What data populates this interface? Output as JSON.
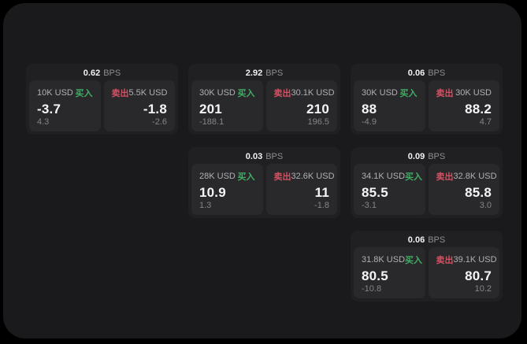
{
  "page": {
    "background": "#000000",
    "panel_background": "#1a1a1c"
  },
  "colors": {
    "buy_green": "#3fae63",
    "sell_red": "#d65063",
    "card_bg": "#202022",
    "subcard_bg": "#29292b",
    "primary_text": "#f5f5f7",
    "muted_text": "#8e8e93"
  },
  "labels": {
    "buy": "买入",
    "sell": "卖出",
    "bps": "BPS"
  },
  "cards": [
    {
      "bps": "0.62",
      "buy": {
        "size": "10K USD",
        "price": "-3.7",
        "delta": "4.3"
      },
      "sell": {
        "size": "5.5K USD",
        "price": "-1.8",
        "delta": "-2.6"
      }
    },
    {
      "bps": "2.92",
      "buy": {
        "size": "30K USD",
        "price": "201",
        "delta": "-188.1"
      },
      "sell": {
        "size": "30.1K USD",
        "price": "210",
        "delta": "196.5"
      }
    },
    {
      "bps": "0.06",
      "buy": {
        "size": "30K USD",
        "price": "88",
        "delta": "-4.9"
      },
      "sell": {
        "size": "30K USD",
        "price": "88.2",
        "delta": "4.7"
      }
    },
    {
      "bps": "0.03",
      "buy": {
        "size": "28K USD",
        "price": "10.9",
        "delta": "1.3"
      },
      "sell": {
        "size": "32.6K USD",
        "price": "11",
        "delta": "-1.8"
      }
    },
    {
      "bps": "0.09",
      "buy": {
        "size": "34.1K USD",
        "price": "85.5",
        "delta": "-3.1"
      },
      "sell": {
        "size": "32.8K USD",
        "price": "85.8",
        "delta": "3.0"
      }
    },
    {
      "bps": "0.06",
      "buy": {
        "size": "31.8K USD",
        "price": "80.5",
        "delta": "-10.8"
      },
      "sell": {
        "size": "39.1K USD",
        "price": "80.7",
        "delta": "10.2"
      }
    }
  ]
}
